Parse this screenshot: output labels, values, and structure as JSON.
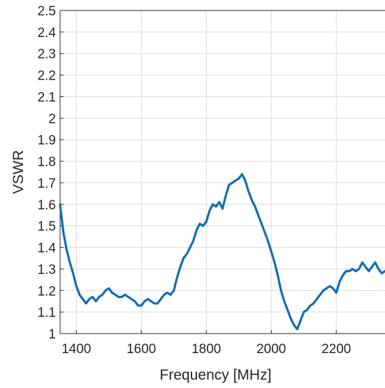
{
  "chart_data": {
    "type": "line",
    "title": "",
    "xlabel": "Frequency [MHz]",
    "ylabel": "VSWR",
    "xlim": [
      1350,
      2350
    ],
    "ylim": [
      1,
      2.5
    ],
    "xticks": [
      1400,
      1600,
      1800,
      2000,
      2200
    ],
    "xtick_labels": [
      "1400",
      "1600",
      "1800",
      "2000",
      "2200"
    ],
    "yticks": [
      1,
      1.1,
      1.2,
      1.3,
      1.4,
      1.5,
      1.6,
      1.7,
      1.8,
      1.9,
      2,
      2.1,
      2.2,
      2.3,
      2.4,
      2.5
    ],
    "ytick_labels": [
      "1",
      "1.1",
      "1.2",
      "1.3",
      "1.4",
      "1.5",
      "1.6",
      "1.7",
      "1.8",
      "1.9",
      "2",
      "2.1",
      "2.2",
      "2.3",
      "2.4",
      "2.5"
    ],
    "grid": true,
    "line_color": "#0f6db4",
    "series": [
      {
        "x": [
          1350,
          1360,
          1370,
          1380,
          1390,
          1400,
          1410,
          1420,
          1430,
          1440,
          1450,
          1460,
          1470,
          1480,
          1490,
          1500,
          1510,
          1520,
          1530,
          1540,
          1550,
          1560,
          1570,
          1580,
          1590,
          1600,
          1610,
          1620,
          1630,
          1640,
          1650,
          1660,
          1670,
          1680,
          1690,
          1700,
          1710,
          1720,
          1730,
          1740,
          1750,
          1760,
          1770,
          1780,
          1790,
          1800,
          1810,
          1820,
          1830,
          1840,
          1850,
          1860,
          1870,
          1880,
          1890,
          1900,
          1910,
          1920,
          1930,
          1940,
          1950,
          1960,
          1970,
          1980,
          1990,
          2000,
          2010,
          2020,
          2030,
          2040,
          2050,
          2060,
          2070,
          2080,
          2090,
          2100,
          2110,
          2120,
          2130,
          2140,
          2150,
          2160,
          2170,
          2180,
          2190,
          2200,
          2210,
          2220,
          2230,
          2240,
          2250,
          2260,
          2270,
          2280,
          2290,
          2300,
          2310,
          2320,
          2330,
          2340,
          2350
        ],
        "y": [
          1.6,
          1.47,
          1.39,
          1.33,
          1.28,
          1.22,
          1.18,
          1.16,
          1.14,
          1.16,
          1.17,
          1.15,
          1.17,
          1.18,
          1.2,
          1.21,
          1.19,
          1.18,
          1.17,
          1.17,
          1.18,
          1.17,
          1.16,
          1.15,
          1.13,
          1.13,
          1.15,
          1.16,
          1.15,
          1.14,
          1.14,
          1.16,
          1.18,
          1.19,
          1.18,
          1.2,
          1.26,
          1.31,
          1.35,
          1.37,
          1.4,
          1.43,
          1.48,
          1.51,
          1.5,
          1.52,
          1.57,
          1.6,
          1.59,
          1.61,
          1.58,
          1.64,
          1.69,
          1.7,
          1.71,
          1.72,
          1.74,
          1.71,
          1.66,
          1.62,
          1.59,
          1.55,
          1.51,
          1.47,
          1.43,
          1.38,
          1.33,
          1.27,
          1.2,
          1.15,
          1.11,
          1.07,
          1.04,
          1.02,
          1.06,
          1.1,
          1.11,
          1.13,
          1.14,
          1.16,
          1.18,
          1.2,
          1.21,
          1.22,
          1.21,
          1.19,
          1.24,
          1.27,
          1.29,
          1.29,
          1.3,
          1.29,
          1.3,
          1.33,
          1.31,
          1.29,
          1.31,
          1.33,
          1.3,
          1.28,
          1.29
        ]
      }
    ]
  }
}
